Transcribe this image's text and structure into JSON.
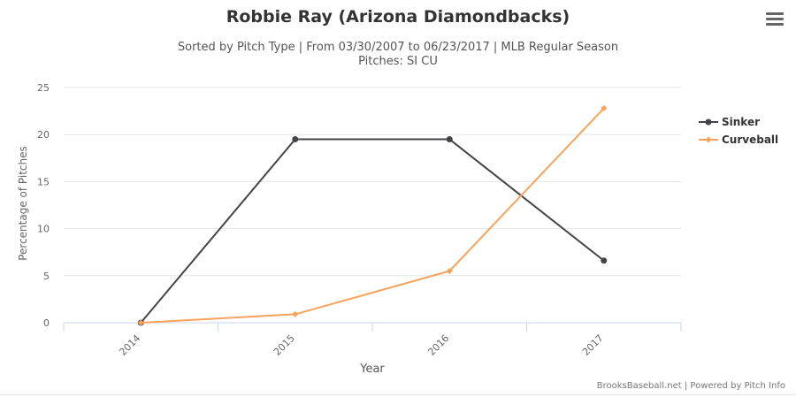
{
  "chart_data": {
    "type": "line",
    "title": "Robbie Ray (Arizona Diamondbacks)",
    "subtitle_line1": "Sorted by Pitch Type | From 03/30/2007 to 06/23/2017 | MLB Regular Season",
    "subtitle_line2": "Pitches: SI CU",
    "xlabel": "Year",
    "ylabel": "Percentage of Pitches",
    "categories": [
      "2014",
      "2015",
      "2016",
      "2017"
    ],
    "ylim": [
      0,
      25
    ],
    "yticks": [
      0,
      5,
      10,
      15,
      20,
      25
    ],
    "grid": true,
    "legend_position": "right",
    "series": [
      {
        "name": "Sinker",
        "color": "#434348",
        "values": [
          0,
          19.5,
          19.5,
          6.6
        ]
      },
      {
        "name": "Curveball",
        "color": "#f7a35c",
        "values": [
          0,
          0.9,
          5.5,
          22.8
        ]
      }
    ]
  },
  "credits": "BrooksBaseball.net | Powered by Pitch Info",
  "icons": {
    "menu": "hamburger-menu-icon"
  }
}
